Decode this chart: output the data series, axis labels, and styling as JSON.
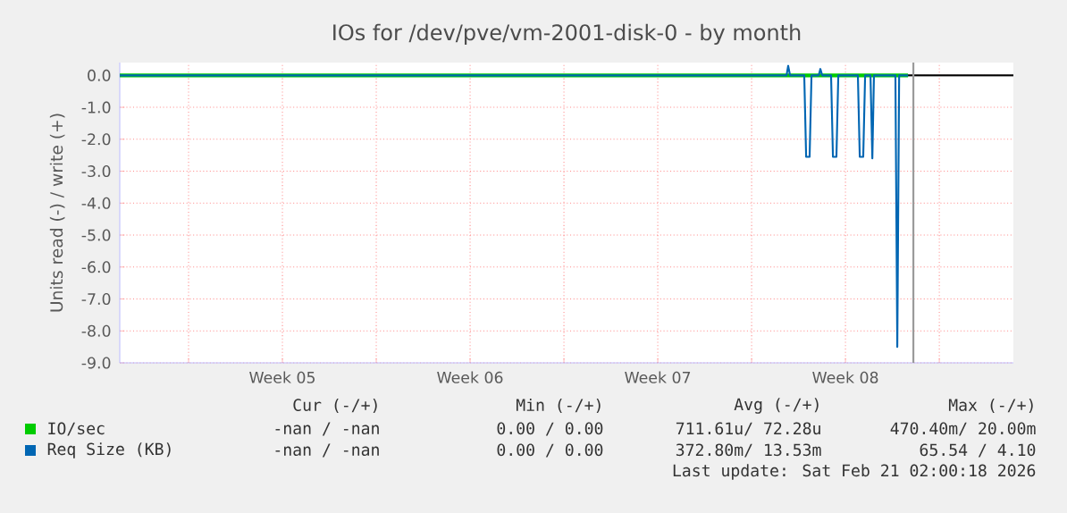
{
  "chart_data": {
    "type": "line",
    "title": "IOs for /dev/pve/vm-2001-disk-0 - by month",
    "ylabel": "Units read (-) / write (+)",
    "xlim": [
      "2026-01-23T10:24",
      "2026-02-25T18:19"
    ],
    "ylim": [
      -9.0,
      0.4
    ],
    "xticks": [
      {
        "value": "2026-01-26T00:00",
        "label": null
      },
      {
        "value": "2026-01-29T12:00",
        "label": "Week 05"
      },
      {
        "value": "2026-02-02T00:00",
        "label": null
      },
      {
        "value": "2026-02-05T12:00",
        "label": "Week 06"
      },
      {
        "value": "2026-02-09T00:00",
        "label": null
      },
      {
        "value": "2026-02-12T12:00",
        "label": "Week 07"
      },
      {
        "value": "2026-02-16T00:00",
        "label": null
      },
      {
        "value": "2026-02-19T12:00",
        "label": "Week 08"
      },
      {
        "value": "2026-02-23T00:00",
        "label": null
      }
    ],
    "yticks": [
      {
        "value": 0,
        "label": "0.0"
      },
      {
        "value": -1,
        "label": "-1.0"
      },
      {
        "value": -2,
        "label": "-2.0"
      },
      {
        "value": -3,
        "label": "-3.0"
      },
      {
        "value": -4,
        "label": "-4.0"
      },
      {
        "value": -5,
        "label": "-5.0"
      },
      {
        "value": -6,
        "label": "-6.0"
      },
      {
        "value": -7,
        "label": "-7.0"
      },
      {
        "value": -8,
        "label": "-8.0"
      },
      {
        "value": -9,
        "label": "-9.0"
      }
    ],
    "grid": true,
    "legend": "bottom left",
    "x": [
      "2026-01-23T10:24",
      "2026-02-17T07:16",
      "2026-02-17T08:43",
      "2026-02-17T10:24",
      "2026-02-17T23:07",
      "2026-02-18T00:48",
      "2026-02-18T03:55",
      "2026-02-18T05:36",
      "2026-02-18T12:04",
      "2026-02-18T13:31",
      "2026-02-18T15:12",
      "2026-02-18T23:07",
      "2026-02-19T00:48",
      "2026-02-19T03:55",
      "2026-02-19T05:36",
      "2026-02-19T23:07",
      "2026-02-20T00:48",
      "2026-02-20T03:55",
      "2026-02-20T05:36",
      "2026-02-20T10:24",
      "2026-02-20T12:04",
      "2026-02-20T13:31",
      "2026-02-21T08:43",
      "2026-02-21T10:24",
      "2026-02-21T12:04",
      "2026-02-21T20:00"
    ],
    "series": [
      {
        "name": "IO/sec",
        "color": "#00cc00",
        "values": [
          0,
          0,
          0,
          0,
          0,
          0,
          0,
          0,
          0,
          0,
          0,
          0,
          0,
          0,
          0,
          0,
          0,
          0,
          0,
          0,
          0,
          0,
          0,
          0,
          0,
          0
        ]
      },
      {
        "name": "Req Size (KB)",
        "color": "#0066b3",
        "values": [
          0,
          0,
          0.3,
          0,
          0,
          -2.55,
          -2.55,
          0,
          0,
          0.2,
          0,
          0,
          -2.55,
          -2.55,
          0,
          0,
          -2.55,
          -2.55,
          0,
          0,
          -2.6,
          0,
          0,
          -8.5,
          0,
          0
        ]
      }
    ],
    "ref_lines": [
      {
        "axis": "y",
        "value": 0,
        "color": "#000000"
      },
      {
        "axis": "x",
        "value": "2026-02-22T00:48",
        "color": "#999999"
      }
    ],
    "annotations": [
      "Cur (-/+)",
      "Min (-/+)",
      "Avg (-/+)",
      "Max (-/+)",
      "-nan /   -nan",
      "0.00 /   0.00",
      "711.61u/  72.28u",
      "470.40m/  20.00m",
      "-nan /   -nan",
      "0.00 /   0.00",
      "372.80m/  13.53m",
      "65.54 /    4.10",
      "Last update: Sat Feb 21 02:00:18 2026"
    ]
  }
}
